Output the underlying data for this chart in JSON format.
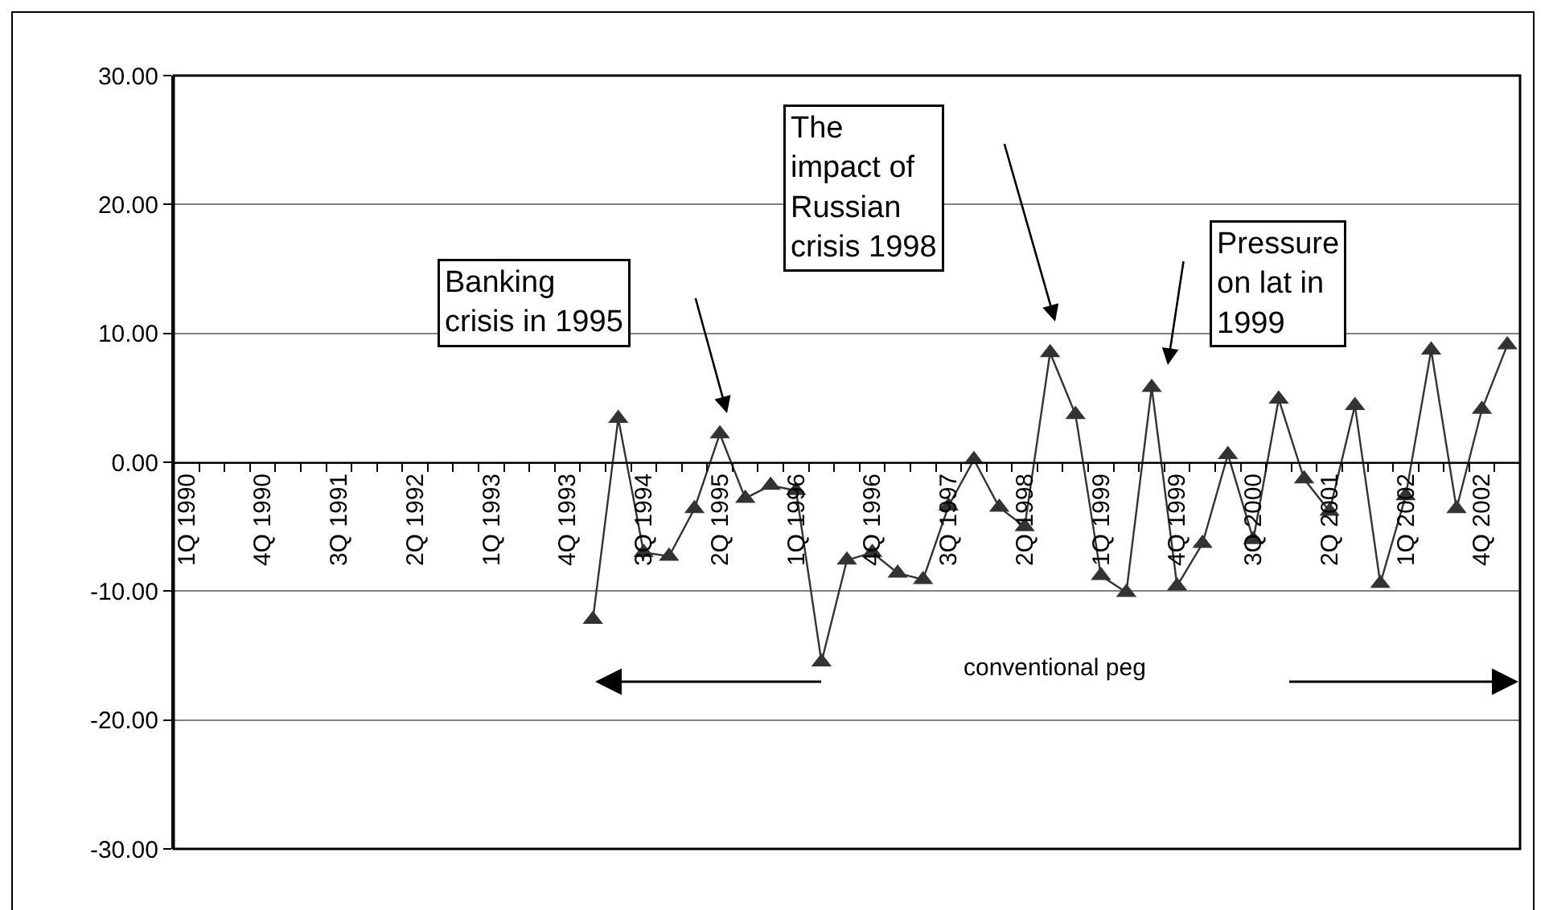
{
  "chart_data": {
    "type": "line",
    "categories": [
      "1Q 1990",
      null,
      null,
      "4Q 1990",
      null,
      null,
      "3Q 1991",
      null,
      null,
      "2Q 1992",
      null,
      null,
      "1Q 1993",
      null,
      null,
      "4Q 1993",
      null,
      null,
      "3Q 1994",
      null,
      null,
      "2Q 1995",
      null,
      null,
      "1Q 1996",
      null,
      null,
      "4Q 1996",
      null,
      null,
      "3Q 1997",
      null,
      null,
      "2Q 1998",
      null,
      null,
      "1Q 1999",
      null,
      null,
      "4Q 1999",
      null,
      null,
      "3Q 2000",
      null,
      null,
      "2Q 2001",
      null,
      null,
      "1Q 2002",
      null,
      null,
      "4Q 2002",
      null
    ],
    "series": [
      {
        "color": "#333333",
        "values": [
          null,
          null,
          null,
          null,
          null,
          null,
          null,
          null,
          null,
          null,
          null,
          null,
          null,
          null,
          null,
          null,
          -12.2,
          3.4,
          -7.0,
          -7.3,
          -3.6,
          2.2,
          -2.8,
          -1.8,
          -2.2,
          -15.5,
          -7.6,
          -7.0,
          -8.6,
          -9.1,
          -3.4,
          0.2,
          -3.5,
          -5.0,
          8.5,
          3.7,
          -8.8,
          -10.1,
          5.8,
          -9.6,
          -6.3,
          0.6,
          -6.0,
          4.9,
          -1.3,
          -3.8,
          4.4,
          -9.4,
          -2.6,
          8.7,
          -3.6,
          4.1,
          9.1
        ]
      }
    ],
    "ylim": [
      -30,
      30
    ],
    "yticks": [
      {
        "value": -30,
        "label": "-30.00"
      },
      {
        "value": -20,
        "label": "-20.00"
      },
      {
        "value": -10,
        "label": "-10.00"
      },
      {
        "value": 0,
        "label": "0.00"
      },
      {
        "value": 10,
        "label": "10.00"
      },
      {
        "value": 20,
        "label": "20.00"
      },
      {
        "value": 30,
        "label": "30.00"
      }
    ],
    "grid": "y",
    "marker": "triangle",
    "line_style": "solid",
    "annotations": [
      "Banking\ncrisis in 1995",
      "The\nimpact of\nRussian\ncrisis 1998",
      "Pressure\non lat in\n1999",
      "conventional peg"
    ]
  }
}
